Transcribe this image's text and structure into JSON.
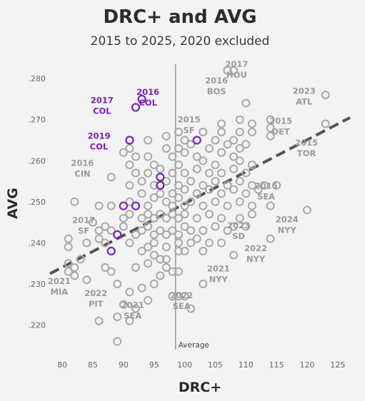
{
  "colors": {
    "point": "#a8a8a8",
    "highlight": "#7b1fbf",
    "trend": "#555555",
    "reference": "#9a9a9a"
  },
  "chart_data": {
    "type": "scatter",
    "title": "DRC+ and AVG",
    "subtitle": "2015 to 2025, 2020 excluded",
    "xlabel": "DRC+",
    "ylabel": "AVG",
    "xlim": [
      78,
      127
    ],
    "ylim": [
      0.214,
      0.2835
    ],
    "x_ticks": [
      80,
      85,
      90,
      95,
      100,
      105,
      110,
      115,
      120,
      125
    ],
    "y_ticks": [
      0.22,
      0.23,
      0.24,
      0.25,
      0.26,
      0.27,
      0.28
    ],
    "y_tick_labels": [
      ".220",
      ".230",
      ".240",
      ".250",
      ".260",
      ".270",
      ".280"
    ],
    "reference_line": {
      "x": 98.5,
      "label": "Average"
    },
    "trend_line": {
      "x": [
        78,
        127
      ],
      "y": [
        0.2325,
        0.2705
      ]
    },
    "highlighted_points": [
      {
        "x": 93,
        "y": 0.275
      },
      {
        "x": 92,
        "y": 0.273
      },
      {
        "x": 91,
        "y": 0.265
      },
      {
        "x": 96,
        "y": 0.256
      },
      {
        "x": 96,
        "y": 0.254
      },
      {
        "x": 102,
        "y": 0.265
      },
      {
        "x": 90,
        "y": 0.249
      },
      {
        "x": 92,
        "y": 0.249
      },
      {
        "x": 89,
        "y": 0.242
      },
      {
        "x": 88,
        "y": 0.238
      }
    ],
    "points": [
      {
        "x": 89,
        "y": 0.216
      },
      {
        "x": 86,
        "y": 0.221
      },
      {
        "x": 89,
        "y": 0.222
      },
      {
        "x": 91,
        "y": 0.221
      },
      {
        "x": 90,
        "y": 0.225
      },
      {
        "x": 92,
        "y": 0.224
      },
      {
        "x": 94,
        "y": 0.226
      },
      {
        "x": 91,
        "y": 0.228
      },
      {
        "x": 93,
        "y": 0.229
      },
      {
        "x": 95,
        "y": 0.23
      },
      {
        "x": 89,
        "y": 0.23
      },
      {
        "x": 84,
        "y": 0.231
      },
      {
        "x": 96,
        "y": 0.232
      },
      {
        "x": 82,
        "y": 0.232
      },
      {
        "x": 81,
        "y": 0.233
      },
      {
        "x": 82,
        "y": 0.234
      },
      {
        "x": 81,
        "y": 0.235
      },
      {
        "x": 88,
        "y": 0.233
      },
      {
        "x": 87,
        "y": 0.234
      },
      {
        "x": 92,
        "y": 0.234
      },
      {
        "x": 94,
        "y": 0.235
      },
      {
        "x": 97,
        "y": 0.234
      },
      {
        "x": 98,
        "y": 0.233
      },
      {
        "x": 99,
        "y": 0.233
      },
      {
        "x": 99,
        "y": 0.227
      },
      {
        "x": 98,
        "y": 0.227
      },
      {
        "x": 100,
        "y": 0.227
      },
      {
        "x": 101,
        "y": 0.224
      },
      {
        "x": 103,
        "y": 0.23
      },
      {
        "x": 103,
        "y": 0.238
      },
      {
        "x": 108,
        "y": 0.237
      },
      {
        "x": 95,
        "y": 0.237
      },
      {
        "x": 96,
        "y": 0.236
      },
      {
        "x": 97,
        "y": 0.236
      },
      {
        "x": 93,
        "y": 0.238
      },
      {
        "x": 94,
        "y": 0.239
      },
      {
        "x": 91,
        "y": 0.24
      },
      {
        "x": 95,
        "y": 0.24
      },
      {
        "x": 97,
        "y": 0.239
      },
      {
        "x": 99,
        "y": 0.238
      },
      {
        "x": 100,
        "y": 0.238
      },
      {
        "x": 101,
        "y": 0.24
      },
      {
        "x": 102,
        "y": 0.241
      },
      {
        "x": 104,
        "y": 0.24
      },
      {
        "x": 106,
        "y": 0.24
      },
      {
        "x": 99,
        "y": 0.24
      },
      {
        "x": 83,
        "y": 0.236
      },
      {
        "x": 84,
        "y": 0.24
      },
      {
        "x": 86,
        "y": 0.241
      },
      {
        "x": 81,
        "y": 0.241
      },
      {
        "x": 81,
        "y": 0.239
      },
      {
        "x": 85,
        "y": 0.245
      },
      {
        "x": 86,
        "y": 0.243
      },
      {
        "x": 87,
        "y": 0.24
      },
      {
        "x": 87,
        "y": 0.244
      },
      {
        "x": 88,
        "y": 0.243
      },
      {
        "x": 90,
        "y": 0.244
      },
      {
        "x": 92,
        "y": 0.242
      },
      {
        "x": 93,
        "y": 0.243
      },
      {
        "x": 94,
        "y": 0.244
      },
      {
        "x": 95,
        "y": 0.242
      },
      {
        "x": 96,
        "y": 0.243
      },
      {
        "x": 97,
        "y": 0.242
      },
      {
        "x": 98,
        "y": 0.243
      },
      {
        "x": 99,
        "y": 0.242
      },
      {
        "x": 100,
        "y": 0.244
      },
      {
        "x": 101,
        "y": 0.243
      },
      {
        "x": 103,
        "y": 0.243
      },
      {
        "x": 105,
        "y": 0.244
      },
      {
        "x": 107,
        "y": 0.243
      },
      {
        "x": 108,
        "y": 0.244
      },
      {
        "x": 110,
        "y": 0.244
      },
      {
        "x": 90,
        "y": 0.246
      },
      {
        "x": 91,
        "y": 0.247
      },
      {
        "x": 93,
        "y": 0.246
      },
      {
        "x": 94,
        "y": 0.247
      },
      {
        "x": 95,
        "y": 0.246
      },
      {
        "x": 96,
        "y": 0.247
      },
      {
        "x": 97,
        "y": 0.246
      },
      {
        "x": 98,
        "y": 0.247
      },
      {
        "x": 99,
        "y": 0.246
      },
      {
        "x": 100,
        "y": 0.247
      },
      {
        "x": 102,
        "y": 0.246
      },
      {
        "x": 104,
        "y": 0.247
      },
      {
        "x": 106,
        "y": 0.246
      },
      {
        "x": 109,
        "y": 0.246
      },
      {
        "x": 111,
        "y": 0.247
      },
      {
        "x": 86,
        "y": 0.249
      },
      {
        "x": 88,
        "y": 0.249
      },
      {
        "x": 91,
        "y": 0.25
      },
      {
        "x": 94,
        "y": 0.249
      },
      {
        "x": 95,
        "y": 0.251
      },
      {
        "x": 97,
        "y": 0.25
      },
      {
        "x": 98,
        "y": 0.249
      },
      {
        "x": 99,
        "y": 0.251
      },
      {
        "x": 100,
        "y": 0.249
      },
      {
        "x": 101,
        "y": 0.25
      },
      {
        "x": 103,
        "y": 0.249
      },
      {
        "x": 105,
        "y": 0.25
      },
      {
        "x": 107,
        "y": 0.249
      },
      {
        "x": 109,
        "y": 0.25
      },
      {
        "x": 111,
        "y": 0.249
      },
      {
        "x": 114,
        "y": 0.249
      },
      {
        "x": 82,
        "y": 0.25
      },
      {
        "x": 93,
        "y": 0.252
      },
      {
        "x": 96,
        "y": 0.252
      },
      {
        "x": 98,
        "y": 0.252
      },
      {
        "x": 100,
        "y": 0.253
      },
      {
        "x": 102,
        "y": 0.252
      },
      {
        "x": 104,
        "y": 0.253
      },
      {
        "x": 106,
        "y": 0.252
      },
      {
        "x": 108,
        "y": 0.253
      },
      {
        "x": 110,
        "y": 0.252
      },
      {
        "x": 112,
        "y": 0.253
      },
      {
        "x": 91,
        "y": 0.254
      },
      {
        "x": 93,
        "y": 0.255
      },
      {
        "x": 95,
        "y": 0.254
      },
      {
        "x": 97,
        "y": 0.255
      },
      {
        "x": 99,
        "y": 0.254
      },
      {
        "x": 101,
        "y": 0.255
      },
      {
        "x": 103,
        "y": 0.254
      },
      {
        "x": 105,
        "y": 0.255
      },
      {
        "x": 107,
        "y": 0.254
      },
      {
        "x": 109,
        "y": 0.255
      },
      {
        "x": 111,
        "y": 0.254
      },
      {
        "x": 113,
        "y": 0.254
      },
      {
        "x": 88,
        "y": 0.256
      },
      {
        "x": 92,
        "y": 0.257
      },
      {
        "x": 94,
        "y": 0.257
      },
      {
        "x": 96,
        "y": 0.258
      },
      {
        "x": 98,
        "y": 0.257
      },
      {
        "x": 100,
        "y": 0.257
      },
      {
        "x": 102,
        "y": 0.258
      },
      {
        "x": 104,
        "y": 0.257
      },
      {
        "x": 106,
        "y": 0.257
      },
      {
        "x": 108,
        "y": 0.258
      },
      {
        "x": 110,
        "y": 0.257
      },
      {
        "x": 91,
        "y": 0.259
      },
      {
        "x": 95,
        "y": 0.259
      },
      {
        "x": 99,
        "y": 0.259
      },
      {
        "x": 103,
        "y": 0.26
      },
      {
        "x": 105,
        "y": 0.259
      },
      {
        "x": 109,
        "y": 0.26
      },
      {
        "x": 111,
        "y": 0.259
      },
      {
        "x": 92,
        "y": 0.261
      },
      {
        "x": 94,
        "y": 0.261
      },
      {
        "x": 98,
        "y": 0.261
      },
      {
        "x": 100,
        "y": 0.262
      },
      {
        "x": 102,
        "y": 0.261
      },
      {
        "x": 106,
        "y": 0.262
      },
      {
        "x": 108,
        "y": 0.261
      },
      {
        "x": 91,
        "y": 0.263
      },
      {
        "x": 97,
        "y": 0.263
      },
      {
        "x": 99,
        "y": 0.263
      },
      {
        "x": 101,
        "y": 0.264
      },
      {
        "x": 104,
        "y": 0.263
      },
      {
        "x": 107,
        "y": 0.264
      },
      {
        "x": 109,
        "y": 0.263
      },
      {
        "x": 90,
        "y": 0.262
      },
      {
        "x": 94,
        "y": 0.265
      },
      {
        "x": 100,
        "y": 0.265
      },
      {
        "x": 105,
        "y": 0.265
      },
      {
        "x": 108,
        "y": 0.265
      },
      {
        "x": 110,
        "y": 0.264
      },
      {
        "x": 97,
        "y": 0.266
      },
      {
        "x": 99,
        "y": 0.267
      },
      {
        "x": 103,
        "y": 0.267
      },
      {
        "x": 106,
        "y": 0.267
      },
      {
        "x": 109,
        "y": 0.267
      },
      {
        "x": 111,
        "y": 0.267
      },
      {
        "x": 114,
        "y": 0.266
      },
      {
        "x": 106,
        "y": 0.269
      },
      {
        "x": 109,
        "y": 0.27
      },
      {
        "x": 111,
        "y": 0.269
      },
      {
        "x": 114,
        "y": 0.268
      },
      {
        "x": 114,
        "y": 0.27
      },
      {
        "x": 110,
        "y": 0.274
      },
      {
        "x": 107,
        "y": 0.282
      },
      {
        "x": 108,
        "y": 0.282
      },
      {
        "x": 123,
        "y": 0.276
      },
      {
        "x": 123,
        "y": 0.269
      },
      {
        "x": 120,
        "y": 0.248
      },
      {
        "x": 114,
        "y": 0.241
      },
      {
        "x": 115,
        "y": 0.254
      }
    ],
    "annotations": [
      {
        "label": [
          "2017",
          "HOU"
        ],
        "x": 108.5,
        "y": 0.2828,
        "highlight": false
      },
      {
        "label": [
          "2016",
          "BOS"
        ],
        "x": 105.2,
        "y": 0.2788,
        "highlight": false
      },
      {
        "label": [
          "2023",
          "ATL"
        ],
        "x": 119.5,
        "y": 0.2763,
        "highlight": false
      },
      {
        "label": [
          "2015",
          "SF"
        ],
        "x": 100.7,
        "y": 0.2693,
        "highlight": false
      },
      {
        "label": [
          "2015",
          "DET"
        ],
        "x": 115.7,
        "y": 0.269,
        "highlight": false
      },
      {
        "label": [
          "2015",
          "TOR"
        ],
        "x": 119.9,
        "y": 0.2637,
        "highlight": false
      },
      {
        "label": [
          "2016",
          "COL"
        ],
        "x": 94.0,
        "y": 0.276,
        "highlight": true
      },
      {
        "label": [
          "2017",
          "COL"
        ],
        "x": 86.5,
        "y": 0.274,
        "highlight": true
      },
      {
        "label": [
          "2019",
          "COL"
        ],
        "x": 86.0,
        "y": 0.2653,
        "highlight": true
      },
      {
        "label": [
          "2016",
          "CIN"
        ],
        "x": 83.3,
        "y": 0.2587,
        "highlight": false
      },
      {
        "label": [
          "2015",
          "SEA"
        ],
        "x": 113.3,
        "y": 0.2532,
        "highlight": false
      },
      {
        "label": [
          "2017",
          "SF"
        ],
        "x": 83.5,
        "y": 0.2448,
        "highlight": false
      },
      {
        "label": [
          "2024",
          "NYY"
        ],
        "x": 116.7,
        "y": 0.245,
        "highlight": false
      },
      {
        "label": [
          "2023",
          "SD"
        ],
        "x": 108.8,
        "y": 0.2435,
        "highlight": false
      },
      {
        "label": [
          "2022",
          "NYY"
        ],
        "x": 111.6,
        "y": 0.238,
        "highlight": false
      },
      {
        "label": [
          "2021",
          "NYY"
        ],
        "x": 105.5,
        "y": 0.233,
        "highlight": false
      },
      {
        "label": [
          "2021",
          "MIA"
        ],
        "x": 79.5,
        "y": 0.23,
        "highlight": false
      },
      {
        "label": [
          "2022",
          "PIT"
        ],
        "x": 85.5,
        "y": 0.227,
        "highlight": false
      },
      {
        "label": [
          "2022",
          "SEA"
        ],
        "x": 99.5,
        "y": 0.2265,
        "highlight": false
      },
      {
        "label": [
          "2021",
          "SEA"
        ],
        "x": 91.5,
        "y": 0.2242,
        "highlight": false
      }
    ]
  }
}
